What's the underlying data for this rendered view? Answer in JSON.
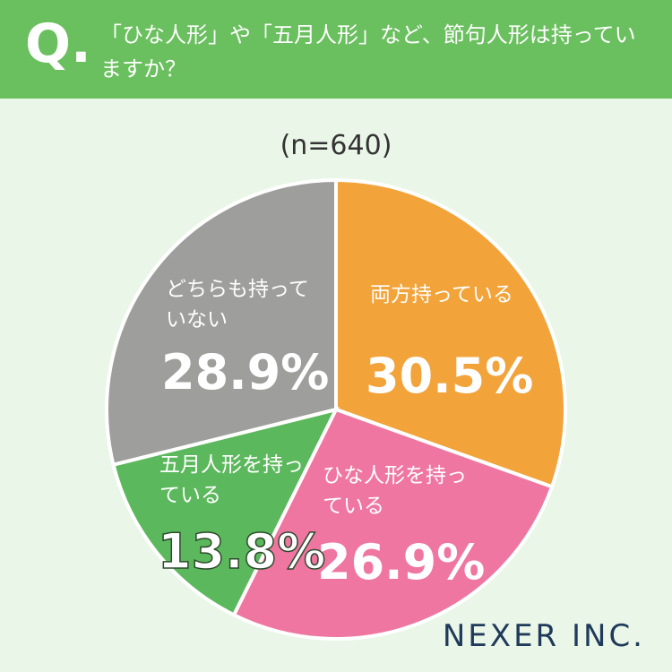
{
  "header": {
    "marker": "Q."
  },
  "chart_data": {
    "type": "pie",
    "title": "「ひな人形」や「五月人形」など、節句人形は持っていますか？",
    "subtitle": "(n=640)",
    "categories": [
      "両方持っている",
      "ひな人形を持っている",
      "五月人形を持っている",
      "どちらも持っていない"
    ],
    "values": [
      30.5,
      26.9,
      13.8,
      28.9
    ],
    "value_labels": [
      "30.5%",
      "26.9%",
      "13.8%",
      "28.9%"
    ],
    "colors": [
      "#f2a33a",
      "#ef76a0",
      "#5cb85c",
      "#9e9e9c"
    ]
  },
  "footer": {
    "logo": "NEXER INC."
  }
}
